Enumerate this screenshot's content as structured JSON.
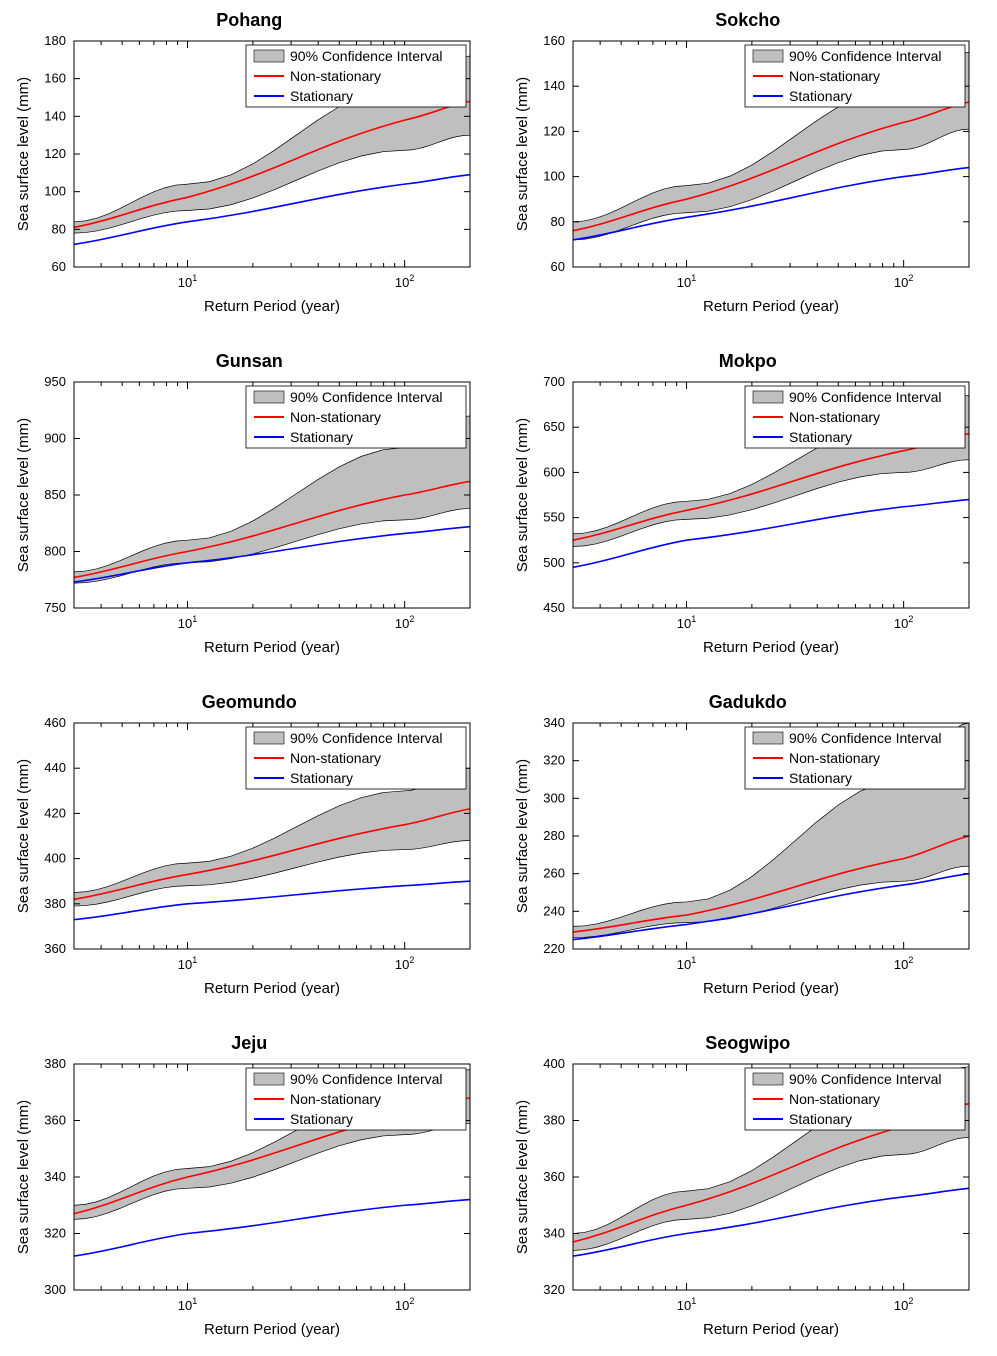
{
  "global": {
    "xlabel": "Return Period (year)",
    "ylabel": "Sea surface level (mm)",
    "legend": {
      "ci": "90% Confidence Interval",
      "nonstat": "Non-stationary",
      "stat": "Stationary"
    },
    "colors": {
      "ci_fill": "#bfbfbf",
      "ci_stroke": "#000000",
      "nonstat": "#ff0000",
      "stat": "#0000ff",
      "axis": "#000000",
      "tick_label": "#000000",
      "background": "#ffffff"
    },
    "line_width": 1.6,
    "title_fontsize": 18,
    "label_fontsize": 15,
    "tick_fontsize": 13,
    "legend_fontsize": 14,
    "x_log": true,
    "x_range": [
      3,
      200
    ],
    "x_major_ticks": [
      10,
      100
    ],
    "x_major_tick_labels": [
      "10",
      "10"
    ],
    "x_major_tick_sup": [
      "1",
      "2"
    ]
  },
  "panels": [
    {
      "title": "Pohang",
      "ylim": [
        60,
        180
      ],
      "yticks": [
        60,
        80,
        100,
        120,
        140,
        160,
        180
      ],
      "ci_upper": {
        "3": 84,
        "10": 104,
        "100": 156,
        "200": 172
      },
      "ci_lower": {
        "3": 78,
        "10": 90,
        "100": 122,
        "200": 130
      },
      "nonstat": {
        "3": 81,
        "10": 97,
        "100": 138,
        "200": 148
      },
      "stat": {
        "3": 72,
        "10": 84,
        "100": 104,
        "200": 109
      }
    },
    {
      "title": "Sokcho",
      "ylim": [
        60,
        160
      ],
      "yticks": [
        60,
        80,
        100,
        120,
        140,
        160
      ],
      "ci_upper": {
        "3": 80,
        "10": 96,
        "100": 140,
        "200": 155
      },
      "ci_lower": {
        "3": 72,
        "10": 84,
        "100": 112,
        "200": 121
      },
      "nonstat": {
        "3": 76,
        "10": 90,
        "100": 124,
        "200": 133
      },
      "stat": {
        "3": 72,
        "10": 82,
        "100": 100,
        "200": 104
      }
    },
    {
      "title": "Gunsan",
      "ylim": [
        750,
        950
      ],
      "yticks": [
        750,
        800,
        850,
        900,
        950
      ],
      "ci_upper": {
        "3": 782,
        "10": 810,
        "100": 892,
        "200": 920
      },
      "ci_lower": {
        "3": 772,
        "10": 790,
        "100": 828,
        "200": 838
      },
      "nonstat": {
        "3": 777,
        "10": 800,
        "100": 850,
        "200": 862
      },
      "stat": {
        "3": 773,
        "10": 790,
        "100": 816,
        "200": 822
      }
    },
    {
      "title": "Mokpo",
      "ylim": [
        450,
        700
      ],
      "yticks": [
        450,
        500,
        550,
        600,
        650,
        700
      ],
      "ci_upper": {
        "3": 532,
        "10": 568,
        "100": 658,
        "200": 685
      },
      "ci_lower": {
        "3": 518,
        "10": 548,
        "100": 600,
        "200": 614
      },
      "nonstat": {
        "3": 525,
        "10": 558,
        "100": 624,
        "200": 643
      },
      "stat": {
        "3": 495,
        "10": 525,
        "100": 562,
        "200": 570
      }
    },
    {
      "title": "Geomundo",
      "ylim": [
        360,
        460
      ],
      "yticks": [
        360,
        380,
        400,
        420,
        440,
        460
      ],
      "ci_upper": {
        "3": 385,
        "10": 398,
        "100": 430,
        "200": 440
      },
      "ci_lower": {
        "3": 379,
        "10": 388,
        "100": 404,
        "200": 408
      },
      "nonstat": {
        "3": 382,
        "10": 393,
        "100": 415,
        "200": 422
      },
      "stat": {
        "3": 373,
        "10": 380,
        "100": 388,
        "200": 390
      }
    },
    {
      "title": "Gadukdo",
      "ylim": [
        220,
        340
      ],
      "yticks": [
        220,
        240,
        260,
        280,
        300,
        320,
        340
      ],
      "ci_upper": {
        "3": 232,
        "10": 245,
        "100": 310,
        "200": 340
      },
      "ci_lower": {
        "3": 226,
        "10": 234,
        "100": 256,
        "200": 264
      },
      "nonstat": {
        "3": 229,
        "10": 238,
        "100": 268,
        "200": 280
      },
      "stat": {
        "3": 225,
        "10": 233,
        "100": 254,
        "200": 260
      }
    },
    {
      "title": "Jeju",
      "ylim": [
        300,
        380
      ],
      "yticks": [
        300,
        320,
        340,
        360,
        380
      ],
      "ci_upper": {
        "3": 330,
        "10": 343,
        "100": 370,
        "200": 378
      },
      "ci_lower": {
        "3": 325,
        "10": 336,
        "100": 355,
        "200": 359
      },
      "nonstat": {
        "3": 327,
        "10": 340,
        "100": 362,
        "200": 368
      },
      "stat": {
        "3": 312,
        "10": 320,
        "100": 330,
        "200": 332
      }
    },
    {
      "title": "Seogwipo",
      "ylim": [
        320,
        400
      ],
      "yticks": [
        320,
        340,
        360,
        380,
        400
      ],
      "ci_upper": {
        "3": 340,
        "10": 355,
        "100": 390,
        "200": 399
      },
      "ci_lower": {
        "3": 334,
        "10": 345,
        "100": 368,
        "200": 374
      },
      "nonstat": {
        "3": 337,
        "10": 350,
        "100": 378,
        "200": 386
      },
      "stat": {
        "3": 332,
        "10": 340,
        "100": 353,
        "200": 356
      }
    }
  ]
}
